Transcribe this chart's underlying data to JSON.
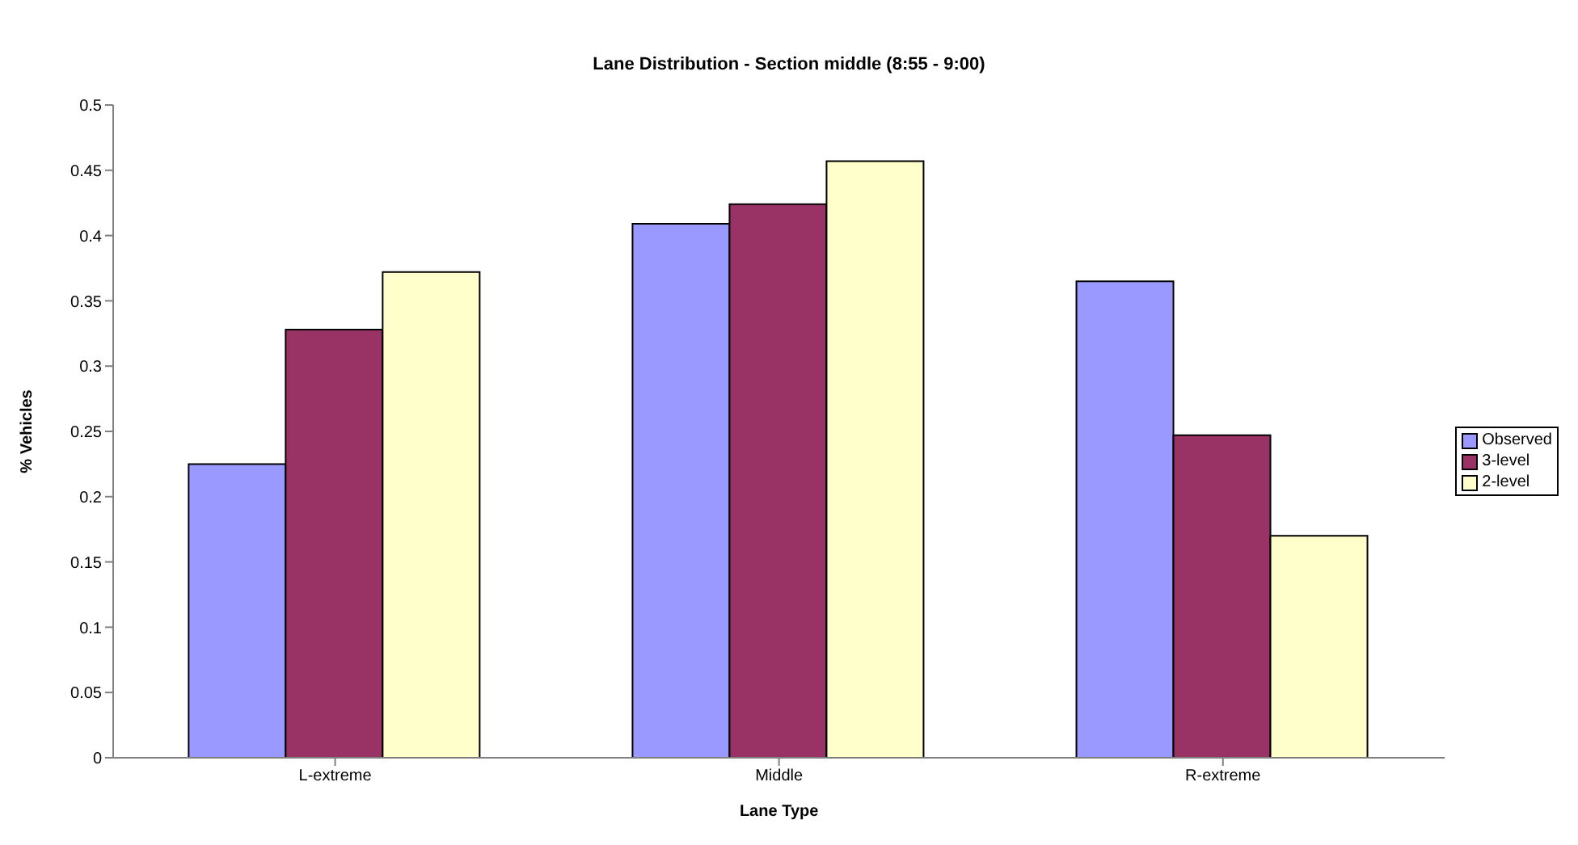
{
  "chart_data": {
    "type": "bar",
    "title": "Lane Distribution - Section middle (8:55 - 9:00)",
    "xlabel": "Lane Type",
    "ylabel": "% Vehicles",
    "categories": [
      "L-extreme",
      "Middle",
      "R-extreme"
    ],
    "series": [
      {
        "name": "Observed",
        "color": "#9999ff",
        "values": [
          0.225,
          0.409,
          0.365
        ]
      },
      {
        "name": "3-level",
        "color": "#993366",
        "values": [
          0.328,
          0.424,
          0.247
        ]
      },
      {
        "name": "2-level",
        "color": "#ffffcc",
        "values": [
          0.372,
          0.457,
          0.17
        ]
      }
    ],
    "ylim": [
      0,
      0.5
    ],
    "yticks": [
      0,
      0.05,
      0.1,
      0.15,
      0.2,
      0.25,
      0.3,
      0.35,
      0.4,
      0.45,
      0.5
    ],
    "grid": false,
    "legend": "right"
  }
}
